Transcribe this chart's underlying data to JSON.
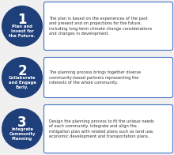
{
  "background_color": "#f0f0f0",
  "circle_color": "#1e3f7a",
  "box_edge_color": "#4472c4",
  "box_face_color": "#ffffff",
  "text_color_white": "#ffffff",
  "text_color_dark": "#333333",
  "items": [
    {
      "number": "1",
      "title": "Plan and\nInvest for\nthe Future.",
      "description": "The plan is based on the experiences of the past\nand present and on projections for the future,\nincluding long-term climate change considerations\nand changes in development."
    },
    {
      "number": "2",
      "title": "Collaborate\nand Engage\nEarly.",
      "description": "The planning process brings together diverse\ncommunity-based partners representing the\ninterests of the whole community."
    },
    {
      "number": "3",
      "title": "Integrate\nCommunity\nPlanning",
      "description": "Design the planning process to fit the unique needs\nof each community. Integrate and align the\nmitigation plan with related plans such as land use,\neconomic development and transportation plans."
    }
  ],
  "figsize": [
    2.2,
    1.96
  ],
  "dpi": 100
}
